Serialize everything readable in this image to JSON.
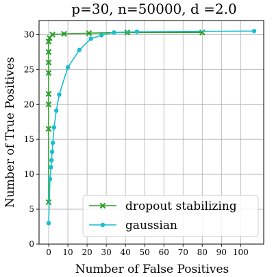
{
  "chart_data": {
    "type": "line",
    "title": "p=30, n=50000, d =2.0",
    "xlabel": "Number of False Positives",
    "ylabel": "Number of True Positives",
    "xlim": [
      -5,
      112
    ],
    "ylim": [
      0,
      32
    ],
    "xticks": [
      0,
      10,
      20,
      30,
      40,
      50,
      60,
      70,
      80,
      90,
      100
    ],
    "yticks": [
      0,
      5,
      10,
      15,
      20,
      25,
      30
    ],
    "grid": true,
    "legend_position": "bottom-right",
    "series": [
      {
        "name": "dropout stabilizing",
        "color": "#2ca02c",
        "marker": "x",
        "points": [
          [
            0,
            6
          ],
          [
            0,
            16.5
          ],
          [
            0,
            20
          ],
          [
            0,
            21.5
          ],
          [
            0,
            24.5
          ],
          [
            0,
            26
          ],
          [
            0,
            27.5
          ],
          [
            0,
            29
          ],
          [
            0.5,
            29.5
          ],
          [
            2,
            30
          ],
          [
            8,
            30.1
          ],
          [
            21,
            30.2
          ],
          [
            41,
            30.3
          ],
          [
            80,
            30.3
          ]
        ]
      },
      {
        "name": "gaussian",
        "color": "#17becf",
        "marker": "o",
        "points": [
          [
            0,
            3
          ],
          [
            0.7,
            9.3
          ],
          [
            1.2,
            11
          ],
          [
            1.5,
            12
          ],
          [
            1.8,
            13.2
          ],
          [
            2.2,
            14.5
          ],
          [
            2.8,
            16.7
          ],
          [
            4,
            19.1
          ],
          [
            5.5,
            21.4
          ],
          [
            10,
            25.3
          ],
          [
            16,
            27.8
          ],
          [
            22,
            29.4
          ],
          [
            27.5,
            29.9
          ],
          [
            34,
            30.3
          ],
          [
            46,
            30.4
          ],
          [
            107,
            30.5
          ]
        ]
      }
    ]
  }
}
